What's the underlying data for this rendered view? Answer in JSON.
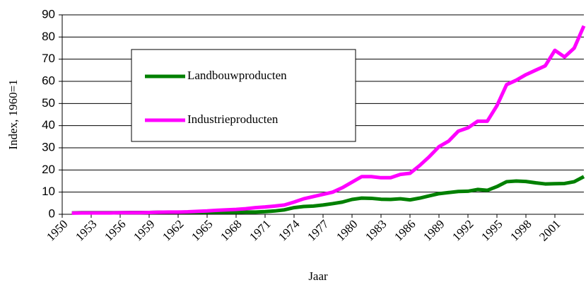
{
  "chart_data": {
    "type": "line",
    "x_label": "Jaar",
    "y_label": "Index, 1960=1",
    "x": [
      1951,
      1952,
      1953,
      1954,
      1955,
      1956,
      1957,
      1958,
      1959,
      1960,
      1961,
      1962,
      1963,
      1964,
      1965,
      1966,
      1967,
      1968,
      1969,
      1970,
      1971,
      1972,
      1973,
      1974,
      1975,
      1976,
      1977,
      1978,
      1979,
      1980,
      1981,
      1982,
      1983,
      1984,
      1985,
      1986,
      1987,
      1988,
      1989,
      1990,
      1991,
      1992,
      1993,
      1994,
      1995,
      1996,
      1997,
      1998,
      1999,
      2000,
      2001,
      2002,
      2003,
      2004
    ],
    "series": [
      {
        "name": "Landbouwproducten",
        "color": "#008000",
        "values": [
          0.6,
          0.7,
          0.7,
          0.7,
          0.7,
          0.7,
          0.8,
          0.8,
          0.8,
          0.9,
          0.9,
          0.9,
          0.9,
          0.9,
          0.9,
          0.9,
          0.9,
          0.9,
          1,
          1,
          1.2,
          1.5,
          2,
          3,
          3.5,
          3.7,
          4.2,
          4.8,
          5.5,
          6.7,
          7.3,
          7.2,
          6.8,
          6.7,
          7,
          6.5,
          7.3,
          8.3,
          9.3,
          9.8,
          10.3,
          10.4,
          11.2,
          10.8,
          12.5,
          14.7,
          15,
          14.8,
          14.2,
          13.7,
          13.8,
          13.9,
          14.7,
          17
        ]
      },
      {
        "name": "Industrieproducten",
        "color": "#ff00ff",
        "values": [
          0.5,
          0.6,
          0.6,
          0.6,
          0.6,
          0.7,
          0.7,
          0.7,
          0.8,
          0.9,
          1,
          1,
          1.1,
          1.3,
          1.5,
          1.8,
          2,
          2.2,
          2.5,
          3,
          3.3,
          3.7,
          4.2,
          5.5,
          7,
          8,
          9,
          10,
          12,
          14.5,
          17,
          17,
          16.5,
          16.5,
          18,
          18.5,
          22,
          26,
          30.5,
          33,
          37.5,
          39,
          42,
          42,
          49,
          58.5,
          60.5,
          63,
          65,
          67,
          74,
          71,
          75,
          85
        ]
      }
    ],
    "xlim": [
      1950,
      2004
    ],
    "xticks": [
      1950,
      1953,
      1956,
      1959,
      1962,
      1965,
      1968,
      1971,
      1974,
      1977,
      1980,
      1983,
      1986,
      1989,
      1992,
      1995,
      1998,
      2001
    ],
    "ylim": [
      0,
      90
    ],
    "yticks": [
      0,
      10,
      20,
      30,
      40,
      50,
      60,
      70,
      80,
      90
    ],
    "grid": true
  }
}
